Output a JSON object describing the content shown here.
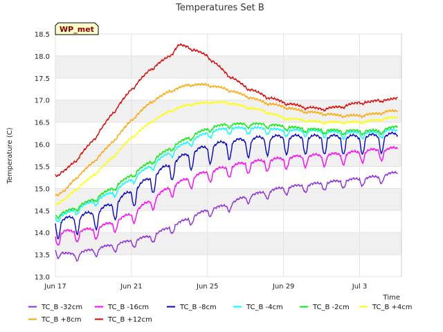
{
  "chart_data": {
    "type": "line",
    "title": "Temperatures Set B",
    "xlabel": "Time",
    "ylabel": "Temperature (C)",
    "annotation": "WP_met",
    "xlim": [
      0,
      18.2
    ],
    "ylim": [
      13.0,
      18.5
    ],
    "x_ticks": [
      {
        "x": 0,
        "label": "Jun 17"
      },
      {
        "x": 4,
        "label": "Jun 21"
      },
      {
        "x": 8,
        "label": "Jun 25"
      },
      {
        "x": 12,
        "label": "Jun 29"
      },
      {
        "x": 16,
        "label": "Jul 3"
      }
    ],
    "y_ticks": [
      13.0,
      13.5,
      14.0,
      14.5,
      15.0,
      15.5,
      16.0,
      16.5,
      17.0,
      17.5,
      18.0,
      18.5
    ],
    "grid": true,
    "legend_position": "bottom",
    "series": [
      {
        "name": "TC_B -32cm",
        "color": "#8a2be2",
        "diurnal": 0.15,
        "x": [
          0,
          0.5,
          1,
          2,
          3,
          4,
          5,
          6,
          7,
          8,
          9,
          10,
          11,
          12,
          13,
          14,
          15,
          16,
          17,
          17.5,
          18
        ],
        "values": [
          13.6,
          13.5,
          13.5,
          13.6,
          13.7,
          13.8,
          13.9,
          14.1,
          14.3,
          14.5,
          14.6,
          14.8,
          14.9,
          15.0,
          15.05,
          15.1,
          15.15,
          15.2,
          15.25,
          15.3,
          15.35
        ]
      },
      {
        "name": "TC_B -16cm",
        "color": "#ff00ff",
        "diurnal": 0.22,
        "x": [
          0,
          0.5,
          1,
          2,
          3,
          4,
          5,
          6,
          7,
          8,
          9,
          10,
          11,
          12,
          13,
          14,
          15,
          16,
          17,
          17.5,
          18
        ],
        "values": [
          13.9,
          14.0,
          14.0,
          14.05,
          14.2,
          14.4,
          14.7,
          15.0,
          15.2,
          15.35,
          15.45,
          15.55,
          15.6,
          15.65,
          15.7,
          15.72,
          15.75,
          15.8,
          15.85,
          15.85,
          15.9
        ]
      },
      {
        "name": "TC_B -8cm",
        "color": "#0000cd",
        "diurnal": 0.35,
        "x": [
          0,
          0.5,
          1,
          2,
          3,
          4,
          5,
          6,
          7,
          8,
          9,
          10,
          11,
          12,
          13,
          14,
          15,
          16,
          17,
          17.5,
          18
        ],
        "values": [
          14.2,
          14.25,
          14.3,
          14.4,
          14.6,
          14.9,
          15.2,
          15.5,
          15.75,
          15.9,
          16.0,
          16.05,
          16.1,
          16.12,
          16.12,
          16.12,
          16.12,
          16.12,
          16.15,
          16.15,
          16.2
        ]
      },
      {
        "name": "TC_B -4cm",
        "color": "#00ffff",
        "diurnal": 0.12,
        "x": [
          0,
          0.5,
          1,
          2,
          3,
          4,
          5,
          6,
          7,
          8,
          9,
          10,
          11,
          12,
          13,
          14,
          15,
          16,
          17,
          17.5,
          18
        ],
        "values": [
          14.35,
          14.4,
          14.5,
          14.7,
          14.9,
          15.2,
          15.5,
          15.8,
          16.05,
          16.25,
          16.35,
          16.35,
          16.35,
          16.3,
          16.3,
          16.28,
          16.25,
          16.25,
          16.25,
          16.3,
          16.3
        ]
      },
      {
        "name": "TC_B -2cm",
        "color": "#00ee00",
        "diurnal": 0.08,
        "x": [
          0,
          0.5,
          1,
          2,
          3,
          4,
          5,
          6,
          7,
          8,
          9,
          10,
          11,
          12,
          13,
          14,
          15,
          16,
          17,
          17.5,
          18
        ],
        "values": [
          14.4,
          14.45,
          14.55,
          14.75,
          15.0,
          15.3,
          15.6,
          15.9,
          16.15,
          16.35,
          16.45,
          16.45,
          16.45,
          16.4,
          16.35,
          16.32,
          16.3,
          16.3,
          16.3,
          16.35,
          16.4
        ]
      },
      {
        "name": "TC_B +4cm",
        "color": "#ffff00",
        "diurnal": 0.03,
        "x": [
          0,
          0.5,
          1,
          2,
          3,
          4,
          5,
          6,
          7,
          8,
          9,
          10,
          11,
          12,
          13,
          14,
          15,
          16,
          17,
          17.5,
          18
        ],
        "values": [
          14.65,
          14.75,
          14.95,
          15.3,
          15.7,
          16.15,
          16.5,
          16.75,
          16.9,
          16.95,
          16.95,
          16.85,
          16.75,
          16.6,
          16.55,
          16.5,
          16.5,
          16.5,
          16.55,
          16.6,
          16.6
        ]
      },
      {
        "name": "TC_B +8cm",
        "color": "#ffa500",
        "diurnal": 0.03,
        "x": [
          0,
          0.5,
          1,
          2,
          3,
          4,
          5,
          6,
          7,
          8,
          9,
          10,
          11,
          12,
          13,
          14,
          15,
          16,
          17,
          17.5,
          18
        ],
        "values": [
          14.85,
          14.95,
          15.2,
          15.6,
          16.05,
          16.55,
          16.95,
          17.2,
          17.35,
          17.35,
          17.25,
          17.1,
          16.95,
          16.85,
          16.75,
          16.7,
          16.65,
          16.65,
          16.7,
          16.75,
          16.75
        ]
      },
      {
        "name": "TC_B +12cm",
        "color": "#e00000",
        "diurnal": 0.04,
        "x": [
          0,
          0.5,
          1,
          2,
          3,
          4,
          5,
          6,
          6.5,
          7,
          7.5,
          8,
          8.5,
          9,
          10,
          11,
          12,
          13,
          14,
          15,
          16,
          16.5,
          17,
          17.5,
          18
        ],
        "values": [
          15.3,
          15.4,
          15.6,
          16.1,
          16.7,
          17.25,
          17.7,
          18.0,
          18.25,
          18.2,
          18.1,
          18.0,
          17.8,
          17.6,
          17.3,
          17.1,
          16.95,
          16.85,
          16.8,
          16.85,
          16.95,
          16.95,
          17.0,
          17.0,
          17.05
        ]
      }
    ]
  }
}
